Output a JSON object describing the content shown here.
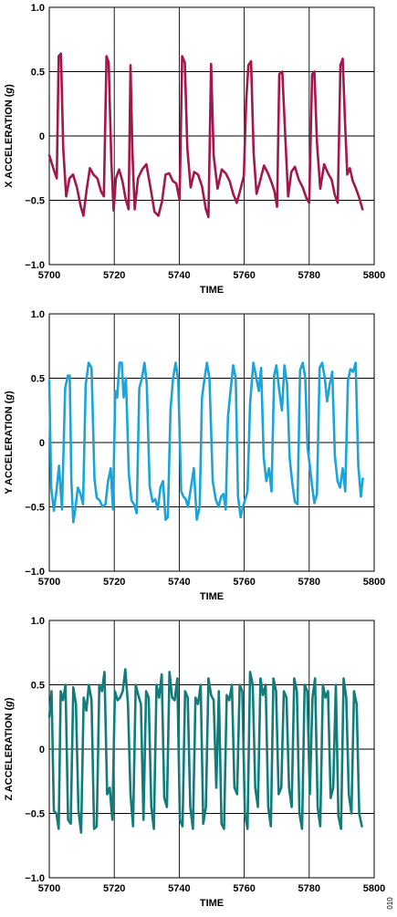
{
  "figure_id": "010",
  "colors": {
    "x": "#A3174A",
    "y": "#1BA4D8",
    "z": "#127C7A"
  },
  "chart_data": [
    {
      "type": "line",
      "xlabel": "TIME",
      "ylabel": "X ACCELERATION (g)",
      "xlim": [
        5700,
        5800
      ],
      "ylim": [
        -1.0,
        1.0
      ],
      "xticks": [
        "5700",
        "5720",
        "5740",
        "5760",
        "5780",
        "5800"
      ],
      "yticks": [
        "−1.0",
        "−0.5",
        "0",
        "0.5",
        "1.0"
      ],
      "grid": true,
      "series": [
        {
          "color": "#A3174A",
          "x": [
            5700,
            5701.5,
            5702.3,
            5702.9,
            5703.6,
            5704.3,
            5705.2,
            5706.2,
            5707.3,
            5708.5,
            5709.6,
            5710.5,
            5711.5,
            5712.5,
            5713.6,
            5714.8,
            5715.9,
            5716.8,
            5717.6,
            5718.3,
            5719.1,
            5719.8,
            5720.5,
            5721.5,
            5722.5,
            5723.5,
            5724.4,
            5725,
            5725.6,
            5726.3,
            5727.3,
            5728.6,
            5729.9,
            5731.2,
            5732.4,
            5733.6,
            5734.7,
            5735.8,
            5736.9,
            5738,
            5739.1,
            5740.1,
            5740.9,
            5741.7,
            5742.5,
            5743.5,
            5744.6,
            5745.8,
            5747,
            5748.2,
            5749,
            5749.8,
            5750.6,
            5751.8,
            5753.1,
            5754.3,
            5755.5,
            5756.6,
            5757.7,
            5758.8,
            5759.9,
            5760.6,
            5761.3,
            5762.1,
            5762.9,
            5763.8,
            5764.9,
            5766.1,
            5767.3,
            5768.4,
            5769.3,
            5770.1,
            5770.8,
            5771.7,
            5772.6,
            5773.5,
            5774.5,
            5775.6,
            5776.8,
            5778,
            5779.1,
            5780,
            5780.9,
            5781.6,
            5782.4,
            5783.4,
            5784.6,
            5785.8,
            5786.9,
            5787.9,
            5788.8,
            5789.6,
            5790.3,
            5791,
            5791.7,
            5792.5,
            5793.4,
            5794.4,
            5795.4,
            5796.4
          ],
          "y": [
            -0.15,
            -0.27,
            -0.33,
            0.62,
            0.64,
            -0.1,
            -0.47,
            -0.33,
            -0.3,
            -0.4,
            -0.54,
            -0.62,
            -0.42,
            -0.25,
            -0.3,
            -0.33,
            -0.43,
            -0.47,
            0.62,
            0.57,
            -0.2,
            -0.58,
            -0.33,
            -0.26,
            -0.35,
            -0.49,
            -0.57,
            0.55,
            -0.13,
            -0.57,
            -0.33,
            -0.26,
            -0.22,
            -0.41,
            -0.59,
            -0.62,
            -0.51,
            -0.3,
            -0.29,
            -0.35,
            -0.37,
            -0.5,
            0.62,
            0.57,
            -0.1,
            -0.4,
            -0.28,
            -0.3,
            -0.39,
            -0.57,
            -0.63,
            0.56,
            -0.15,
            -0.41,
            -0.26,
            -0.29,
            -0.35,
            -0.45,
            -0.52,
            -0.42,
            -0.31,
            0.27,
            0.55,
            0.58,
            -0.13,
            -0.45,
            -0.35,
            -0.23,
            -0.29,
            -0.36,
            -0.43,
            -0.55,
            0.48,
            0.5,
            0.01,
            -0.47,
            -0.28,
            -0.24,
            -0.34,
            -0.4,
            -0.48,
            -0.52,
            0.48,
            0.5,
            -0.05,
            -0.41,
            -0.22,
            -0.29,
            -0.34,
            -0.46,
            -0.52,
            0.55,
            0.6,
            0.12,
            -0.3,
            -0.25,
            -0.35,
            -0.41,
            -0.48,
            -0.57
          ]
        }
      ]
    },
    {
      "type": "line",
      "xlabel": "TIME",
      "ylabel": "Y ACCELERATION (g)",
      "xlim": [
        5700,
        5800
      ],
      "ylim": [
        -1.0,
        1.0
      ],
      "xticks": [
        "5700",
        "5720",
        "5740",
        "5760",
        "5780",
        "5800"
      ],
      "yticks": [
        "−1.0",
        "−0.5",
        "0",
        "0.5",
        "1.0"
      ],
      "grid": true,
      "series": [
        {
          "color": "#1BA4D8",
          "x": [
            5700,
            5700.6,
            5701.4,
            5702.2,
            5703,
            5703.9,
            5704.9,
            5705.7,
            5706.3,
            5706.8,
            5707.4,
            5708,
            5708.8,
            5709.6,
            5710.4,
            5711.2,
            5712.1,
            5713,
            5713.9,
            5714.6,
            5715.5,
            5716.4,
            5717.3,
            5718.1,
            5718.9,
            5719.6,
            5720.3,
            5720.9,
            5721.6,
            5722.3,
            5722.9,
            5723.6,
            5724.5,
            5725.3,
            5726.1,
            5726.9,
            5727.7,
            5728.5,
            5729.3,
            5730,
            5730.9,
            5731.8,
            5732.6,
            5733.4,
            5734.2,
            5735,
            5735.8,
            5736.5,
            5737.3,
            5738.1,
            5738.9,
            5739.7,
            5740.6,
            5741.3,
            5742,
            5742.7,
            5743.6,
            5744.5,
            5745.4,
            5746.3,
            5747,
            5747.8,
            5748.5,
            5749.3,
            5750.3,
            5751.2,
            5752.1,
            5752.9,
            5753.6,
            5754.3,
            5755,
            5755.8,
            5756.6,
            5757.4,
            5758.1,
            5758.9,
            5759.6,
            5760.2,
            5761,
            5761.8,
            5762.8,
            5763.6,
            5764.5,
            5765.2,
            5766,
            5766.8,
            5767.6,
            5768.4,
            5769.2,
            5769.9,
            5770.7,
            5771.6,
            5772.4,
            5773.2,
            5774,
            5774.8,
            5775.6,
            5776.4,
            5777.2,
            5778,
            5778.8,
            5779.5,
            5780.2,
            5780.9,
            5781.6,
            5782.4,
            5783.2,
            5784,
            5784.8,
            5785.5,
            5786.3,
            5787.1,
            5787.9,
            5788.7,
            5789.5,
            5790.3,
            5791.1,
            5791.9,
            5792.7,
            5793.5,
            5794.3,
            5795.1,
            5795.9,
            5796.5
          ],
          "y": [
            0.48,
            -0.35,
            -0.53,
            -0.38,
            -0.18,
            -0.52,
            0.42,
            0.52,
            0.52,
            -0.3,
            -0.62,
            -0.52,
            -0.35,
            -0.4,
            -0.48,
            0.45,
            0.62,
            0.58,
            -0.28,
            -0.43,
            -0.45,
            -0.5,
            -0.48,
            -0.3,
            -0.2,
            -0.52,
            0.4,
            0.35,
            0.62,
            0.62,
            0.35,
            0.5,
            -0.25,
            -0.45,
            -0.48,
            -0.55,
            0.42,
            0.5,
            0.62,
            0.46,
            -0.34,
            -0.46,
            -0.44,
            -0.52,
            -0.35,
            -0.3,
            -0.6,
            -0.58,
            0.25,
            0.5,
            0.62,
            0.48,
            -0.38,
            -0.42,
            -0.44,
            -0.5,
            -0.35,
            -0.2,
            -0.6,
            -0.5,
            0.35,
            0.5,
            0.62,
            0.5,
            -0.3,
            -0.44,
            -0.5,
            -0.42,
            -0.4,
            -0.52,
            0.2,
            0.4,
            0.6,
            0.5,
            -0.42,
            -0.58,
            -0.5,
            -0.45,
            -0.38,
            0.3,
            0.62,
            0.52,
            0.4,
            0.58,
            -0.12,
            -0.3,
            -0.2,
            -0.38,
            0.52,
            0.6,
            0.42,
            0.25,
            0.6,
            0.45,
            -0.12,
            -0.32,
            -0.46,
            -0.48,
            0.56,
            0.62,
            0.5,
            -0.04,
            -0.18,
            -0.34,
            -0.47,
            -0.4,
            0.58,
            0.62,
            0.5,
            0.32,
            0.45,
            0.55,
            -0.1,
            -0.3,
            -0.35,
            -0.2,
            -0.38,
            0.48,
            0.57,
            0.55,
            0.62,
            -0.18,
            -0.42,
            -0.28
          ]
        }
      ]
    },
    {
      "type": "line",
      "xlabel": "TIME",
      "ylabel": "Z ACCELERATION (g)",
      "xlim": [
        5700,
        5800
      ],
      "ylim": [
        -1.0,
        1.0
      ],
      "xticks": [
        "5700",
        "5720",
        "5740",
        "5760",
        "5780",
        "5800"
      ],
      "yticks": [
        "−1.0",
        "−0.5",
        "0",
        "0.5",
        "1.0"
      ],
      "grid": true,
      "series": [
        {
          "color": "#127C7A",
          "x": [
            5700,
            5700.7,
            5701.4,
            5702.2,
            5702.9,
            5703.5,
            5704.2,
            5705,
            5705.8,
            5706.6,
            5707.4,
            5708.2,
            5709,
            5709.8,
            5710.6,
            5711.4,
            5712.2,
            5713,
            5713.8,
            5714.6,
            5715.4,
            5716.2,
            5717,
            5717.8,
            5718.6,
            5719.4,
            5720.2,
            5721,
            5721.8,
            5722.6,
            5723.4,
            5724.2,
            5725,
            5725.8,
            5726.6,
            5727.4,
            5728.2,
            5729,
            5729.8,
            5730.6,
            5731.4,
            5732.2,
            5733,
            5733.8,
            5734.6,
            5735.4,
            5736.2,
            5737,
            5737.8,
            5738.6,
            5739.4,
            5740.2,
            5741,
            5741.8,
            5742.6,
            5743.4,
            5744.2,
            5745,
            5745.8,
            5746.6,
            5747.4,
            5748.2,
            5749,
            5749.8,
            5750.6,
            5751.4,
            5752.2,
            5753,
            5753.8,
            5754.6,
            5755.4,
            5756.2,
            5757,
            5757.8,
            5758.6,
            5759.4,
            5760.2,
            5761,
            5761.8,
            5762.6,
            5763.4,
            5764.2,
            5765,
            5765.8,
            5766.6,
            5767.4,
            5768.2,
            5769,
            5769.8,
            5770.6,
            5771.4,
            5772.2,
            5773,
            5773.8,
            5774.6,
            5775.4,
            5776.2,
            5777,
            5777.8,
            5778.6,
            5779.4,
            5780.2,
            5781,
            5781.8,
            5782.6,
            5783.4,
            5784.2,
            5785,
            5785.8,
            5786.6,
            5787.4,
            5788.2,
            5789,
            5789.8,
            5790.6,
            5791.4,
            5792.2,
            5793,
            5793.8,
            5794.6,
            5795.4,
            5796.2
          ],
          "y": [
            0.25,
            0.45,
            -0.48,
            -0.5,
            -0.62,
            0.45,
            0.38,
            0.5,
            -0.55,
            -0.58,
            0.48,
            0.35,
            -0.48,
            -0.65,
            0.4,
            0.3,
            0.5,
            0.38,
            -0.62,
            -0.6,
            0.5,
            0.45,
            0.6,
            -0.35,
            -0.3,
            -0.55,
            0.45,
            0.38,
            0.4,
            0.45,
            0.62,
            0.35,
            -0.35,
            -0.6,
            0.5,
            0.42,
            0.35,
            -0.55,
            0.45,
            0.4,
            -0.45,
            -0.62,
            0.5,
            0.4,
            0.58,
            -0.38,
            -0.45,
            0.6,
            0.4,
            0.38,
            0.55,
            -0.55,
            -0.6,
            0.45,
            0.4,
            -0.45,
            -0.62,
            0.4,
            0.35,
            0.5,
            -0.58,
            -0.45,
            0.55,
            0.42,
            0.38,
            -0.3,
            0.45,
            -0.58,
            -0.62,
            0.42,
            0.38,
            0.5,
            -0.3,
            -0.35,
            0.5,
            0.45,
            -0.5,
            -0.62,
            0.6,
            0.5,
            -0.3,
            -0.45,
            0.55,
            0.42,
            0.5,
            -0.45,
            -0.6,
            0.55,
            0.45,
            -0.35,
            -0.3,
            0.45,
            0.4,
            -0.3,
            -0.45,
            0.55,
            0.45,
            -0.5,
            -0.62,
            0.5,
            0.45,
            -0.35,
            0.4,
            0.55,
            -0.45,
            -0.6,
            0.5,
            0.4,
            0.45,
            -0.38,
            -0.3,
            0.5,
            -0.52,
            -0.62,
            0.55,
            0.4,
            -0.35,
            -0.5,
            0.45,
            0.35,
            -0.5,
            -0.6
          ]
        }
      ]
    }
  ]
}
